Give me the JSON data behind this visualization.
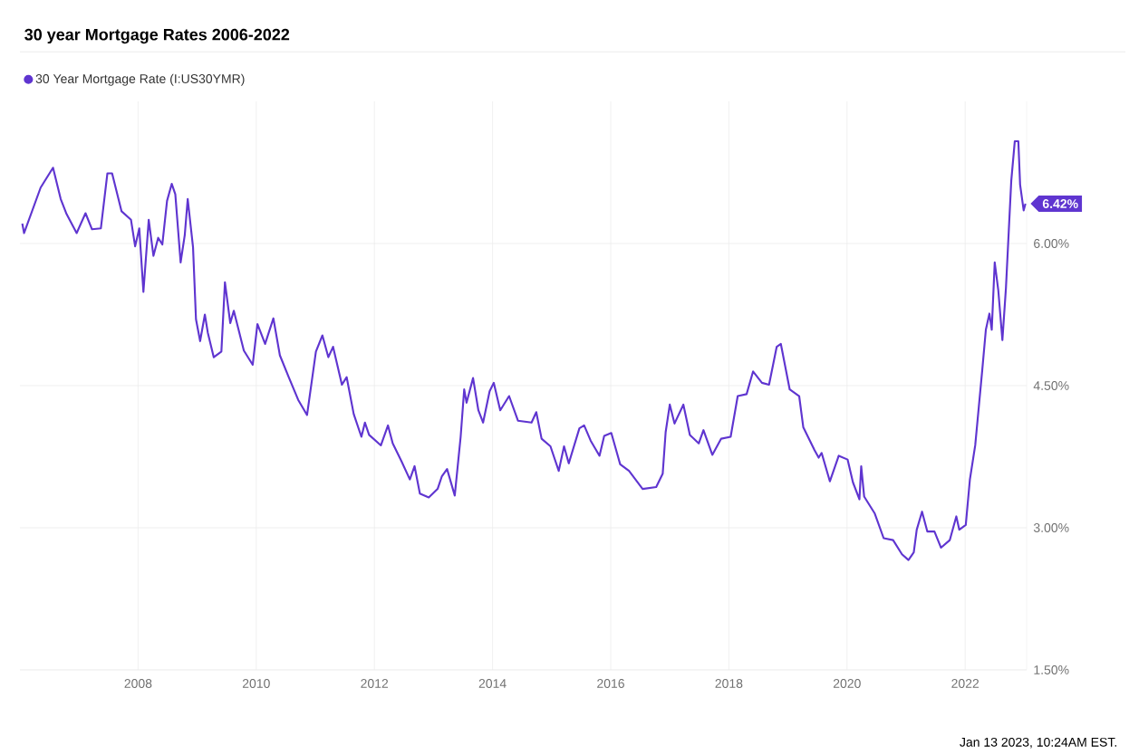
{
  "chart_data": {
    "type": "line",
    "title": "30 year Mortgage Rates 2006-2022",
    "xlim": [
      2006.0,
      2023.04
    ],
    "ylim": [
      1.5,
      7.5
    ],
    "xticks": [
      2008,
      2010,
      2012,
      2014,
      2016,
      2018,
      2020,
      2022
    ],
    "yticks": [
      {
        "value": 1.5,
        "label": "1.50%"
      },
      {
        "value": 3.0,
        "label": "3.00%"
      },
      {
        "value": 4.5,
        "label": "4.50%"
      },
      {
        "value": 6.0,
        "label": "6.00%"
      }
    ],
    "grid": true,
    "legend": "top left",
    "series": [
      {
        "name": "30 Year Mortgage Rate (I:US30YMR)",
        "color": "#5f35d0",
        "x": [
          2006.04,
          2006.07,
          2006.35,
          2006.56,
          2006.69,
          2006.79,
          2006.96,
          2007.11,
          2007.22,
          2007.37,
          2007.48,
          2007.56,
          2007.72,
          2007.88,
          2007.95,
          2008.02,
          2008.09,
          2008.18,
          2008.26,
          2008.34,
          2008.41,
          2008.49,
          2008.57,
          2008.63,
          2008.72,
          2008.79,
          2008.84,
          2008.93,
          2008.98,
          2009.05,
          2009.13,
          2009.18,
          2009.28,
          2009.41,
          2009.47,
          2009.56,
          2009.62,
          2009.79,
          2009.94,
          2010.02,
          2010.15,
          2010.29,
          2010.4,
          2010.55,
          2010.71,
          2010.86,
          2011.01,
          2011.12,
          2011.22,
          2011.3,
          2011.45,
          2011.53,
          2011.65,
          2011.78,
          2011.84,
          2011.91,
          2012.11,
          2012.23,
          2012.31,
          2012.46,
          2012.6,
          2012.68,
          2012.77,
          2012.92,
          2013.07,
          2013.14,
          2013.23,
          2013.36,
          2013.46,
          2013.52,
          2013.56,
          2013.67,
          2013.76,
          2013.84,
          2013.95,
          2014.02,
          2014.13,
          2014.28,
          2014.43,
          2014.66,
          2014.74,
          2014.83,
          2014.98,
          2015.12,
          2015.21,
          2015.29,
          2015.47,
          2015.55,
          2015.66,
          2015.81,
          2015.89,
          2016.01,
          2016.16,
          2016.31,
          2016.54,
          2016.77,
          2016.88,
          2016.93,
          2017.0,
          2017.08,
          2017.23,
          2017.34,
          2017.49,
          2017.57,
          2017.72,
          2017.87,
          2018.03,
          2018.15,
          2018.3,
          2018.41,
          2018.56,
          2018.68,
          2018.81,
          2018.88,
          2019.03,
          2019.19,
          2019.26,
          2019.45,
          2019.52,
          2019.57,
          2019.71,
          2019.86,
          2020.01,
          2020.1,
          2020.21,
          2020.24,
          2020.29,
          2020.47,
          2020.62,
          2020.78,
          2020.93,
          2021.04,
          2021.13,
          2021.18,
          2021.27,
          2021.36,
          2021.48,
          2021.59,
          2021.74,
          2021.85,
          2021.9,
          2022.01,
          2022.08,
          2022.17,
          2022.29,
          2022.35,
          2022.41,
          2022.45,
          2022.5,
          2022.56,
          2022.63,
          2022.69,
          2022.78,
          2022.84,
          2022.9,
          2022.93,
          2022.99,
          2023.02
        ],
        "values": [
          6.21,
          6.11,
          6.59,
          6.8,
          6.47,
          6.31,
          6.11,
          6.32,
          6.15,
          6.16,
          6.74,
          6.74,
          6.34,
          6.25,
          5.97,
          6.16,
          5.49,
          6.25,
          5.87,
          6.06,
          5.99,
          6.45,
          6.63,
          6.52,
          5.8,
          6.09,
          6.47,
          5.96,
          5.2,
          4.97,
          5.25,
          5.06,
          4.8,
          4.86,
          5.59,
          5.16,
          5.29,
          4.87,
          4.72,
          5.15,
          4.94,
          5.21,
          4.82,
          4.59,
          4.35,
          4.19,
          4.86,
          5.03,
          4.8,
          4.91,
          4.51,
          4.59,
          4.2,
          3.96,
          4.11,
          3.98,
          3.87,
          4.08,
          3.89,
          3.7,
          3.51,
          3.65,
          3.36,
          3.32,
          3.41,
          3.54,
          3.62,
          3.34,
          3.96,
          4.46,
          4.32,
          4.58,
          4.24,
          4.11,
          4.44,
          4.53,
          4.24,
          4.39,
          4.13,
          4.11,
          4.22,
          3.94,
          3.86,
          3.6,
          3.86,
          3.68,
          4.05,
          4.08,
          3.92,
          3.76,
          3.97,
          4.0,
          3.67,
          3.6,
          3.41,
          3.43,
          3.57,
          4.01,
          4.3,
          4.1,
          4.3,
          3.98,
          3.89,
          4.03,
          3.77,
          3.94,
          3.96,
          4.39,
          4.41,
          4.65,
          4.53,
          4.51,
          4.91,
          4.94,
          4.46,
          4.39,
          4.06,
          3.82,
          3.74,
          3.79,
          3.49,
          3.76,
          3.72,
          3.48,
          3.3,
          3.65,
          3.33,
          3.15,
          2.89,
          2.87,
          2.72,
          2.66,
          2.74,
          2.98,
          3.17,
          2.96,
          2.96,
          2.79,
          2.87,
          3.12,
          2.98,
          3.03,
          3.51,
          3.87,
          4.67,
          5.09,
          5.26,
          5.09,
          5.8,
          5.51,
          4.98,
          5.53,
          6.66,
          7.08,
          7.08,
          6.62,
          6.35,
          6.42
        ]
      }
    ],
    "annotations": [
      {
        "text": "6.42%",
        "x": 2023.02,
        "y": 6.42
      },
      "Jan 13 2023, 10:24AM EST."
    ]
  }
}
